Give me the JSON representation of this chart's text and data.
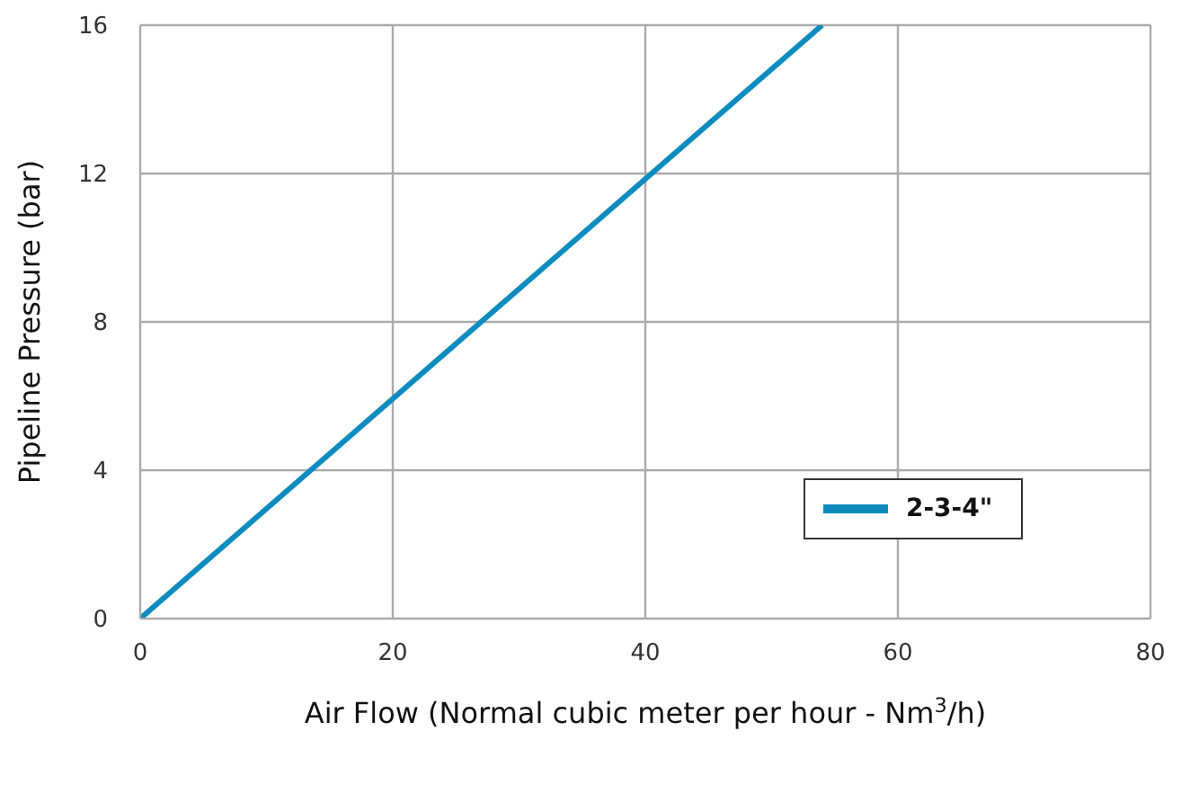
{
  "chart_data": {
    "type": "line",
    "xlabel": "Air Flow (Normal cubic meter per hour - Nm$^{3}$/h)",
    "ylabel": "Pipeline Pressure (bar)",
    "series": [
      {
        "name": "2-3-4\"",
        "color": "#0e8cbf",
        "x": [
          0,
          54
        ],
        "values": [
          0,
          16
        ]
      }
    ],
    "xlim": [
      0,
      80
    ],
    "xticks": [
      0,
      20,
      40,
      60,
      80
    ],
    "ylim": [
      0,
      16
    ],
    "yticks": [
      0,
      4,
      8,
      12,
      16
    ],
    "grid": true,
    "legend": "bottom right",
    "marker": "none",
    "line_style": "solid"
  }
}
